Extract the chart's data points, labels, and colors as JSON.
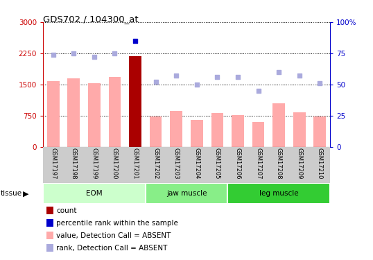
{
  "title": "GDS702 / 104300_at",
  "samples": [
    "GSM17197",
    "GSM17198",
    "GSM17199",
    "GSM17200",
    "GSM17201",
    "GSM17202",
    "GSM17203",
    "GSM17204",
    "GSM17205",
    "GSM17206",
    "GSM17207",
    "GSM17208",
    "GSM17209",
    "GSM17210"
  ],
  "bar_values": [
    1580,
    1650,
    1530,
    1680,
    2180,
    730,
    870,
    640,
    820,
    770,
    590,
    1050,
    830,
    730
  ],
  "bar_colors": [
    "#ffaaaa",
    "#ffaaaa",
    "#ffaaaa",
    "#ffaaaa",
    "#aa0000",
    "#ffaaaa",
    "#ffaaaa",
    "#ffaaaa",
    "#ffaaaa",
    "#ffaaaa",
    "#ffaaaa",
    "#ffaaaa",
    "#ffaaaa",
    "#ffaaaa"
  ],
  "rank_values": [
    74,
    75,
    72,
    75,
    85,
    52,
    57,
    50,
    56,
    56,
    45,
    60,
    57,
    51
  ],
  "rank_colors": [
    "#aaaadd",
    "#aaaadd",
    "#aaaadd",
    "#aaaadd",
    "#0000cc",
    "#aaaadd",
    "#aaaadd",
    "#aaaadd",
    "#aaaadd",
    "#aaaadd",
    "#aaaadd",
    "#aaaadd",
    "#aaaadd",
    "#aaaadd"
  ],
  "ylim_left": [
    0,
    3000
  ],
  "ylim_right": [
    0,
    100
  ],
  "yticks_left": [
    0,
    750,
    1500,
    2250,
    3000
  ],
  "yticks_right": [
    0,
    25,
    50,
    75,
    100
  ],
  "groups": [
    {
      "label": "EOM",
      "start": 0,
      "end": 4,
      "color": "#ccffcc"
    },
    {
      "label": "jaw muscle",
      "start": 5,
      "end": 8,
      "color": "#88ee88"
    },
    {
      "label": "leg muscle",
      "start": 9,
      "end": 13,
      "color": "#33cc33"
    }
  ],
  "tissue_label": "tissue",
  "legend_items": [
    {
      "color": "#aa0000",
      "label": "count"
    },
    {
      "color": "#0000cc",
      "label": "percentile rank within the sample"
    },
    {
      "color": "#ffaaaa",
      "label": "value, Detection Call = ABSENT"
    },
    {
      "color": "#aaaadd",
      "label": "rank, Detection Call = ABSENT"
    }
  ],
  "grid_style": "dotted",
  "left_axis_color": "#cc0000",
  "right_axis_color": "#0000cc",
  "tick_area_color": "#cccccc"
}
